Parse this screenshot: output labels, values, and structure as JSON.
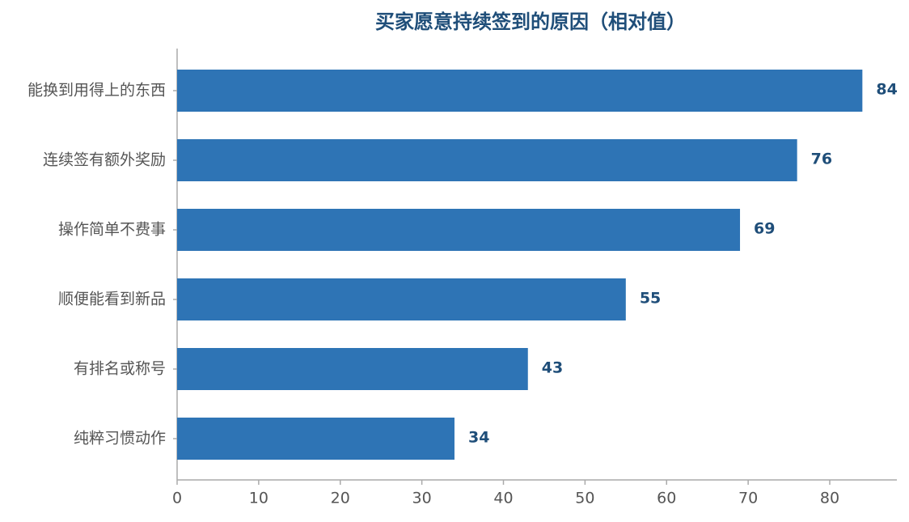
{
  "chart_data": {
    "type": "barh",
    "title": "买家愿意持续签到的原因（相对值）",
    "categories": [
      "能换到用得上的东西",
      "连续签有额外奖励",
      "操作简单不费事",
      "顺便能看到新品",
      "有排名或称号",
      "纯粹习惯动作"
    ],
    "values": [
      84,
      76,
      69,
      55,
      43,
      34
    ],
    "color": "#2e74b5",
    "xlim": [
      0,
      88
    ],
    "xticks": [
      0,
      10,
      20,
      30,
      40,
      50,
      60,
      70,
      80
    ],
    "grid": false
  }
}
